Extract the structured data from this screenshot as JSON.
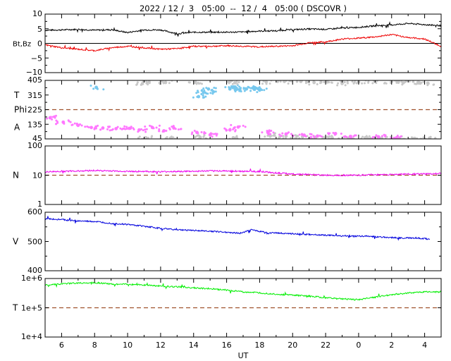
{
  "title": "2022 / 12 /  3   05:00  --  12 /  4   05:00 ( DSCOVR )",
  "x_axis": {
    "label": "UT",
    "tick_labels": [
      "6",
      "8",
      "10",
      "12",
      "14",
      "16",
      "18",
      "20",
      "22",
      "0",
      "2",
      "4"
    ],
    "tick_hours": [
      6,
      8,
      10,
      12,
      14,
      16,
      18,
      20,
      22,
      24,
      26,
      28
    ],
    "range_hours": [
      5,
      29
    ]
  },
  "colors": {
    "bt": "#000000",
    "bz": "#ee0000",
    "theta": "#77c8ee",
    "phi": "#c8c8c8",
    "angle_a": "#ff77ff",
    "density": "#ee00ee",
    "speed": "#0000dd",
    "temperature": "#00ee00",
    "reference": "#a0522d"
  },
  "chart_data": [
    {
      "type": "line",
      "panel": "magnetic-field",
      "ylabel": "Bt,Bz",
      "ylim": [
        -10,
        10
      ],
      "yticks": [
        "10",
        "5",
        "0",
        "−5",
        "−10"
      ],
      "ytick_values": [
        10,
        5,
        0,
        -5,
        -10
      ],
      "reference_line": 0,
      "series": [
        {
          "key": "bt",
          "x": [
            5,
            6,
            7,
            8,
            9,
            10,
            11,
            12,
            13,
            14,
            15,
            16,
            17,
            18,
            19,
            20,
            21,
            22,
            23,
            24,
            25,
            26,
            27,
            28,
            29.2
          ],
          "values": [
            4.5,
            4.6,
            4.8,
            4.5,
            4.7,
            3.7,
            4.6,
            4.6,
            3.3,
            3.8,
            3.8,
            3.8,
            3.9,
            4.2,
            4.3,
            4.7,
            4.9,
            4.8,
            5.2,
            5.5,
            6.0,
            6.3,
            6.8,
            6.4,
            6.0
          ]
        },
        {
          "key": "bz",
          "x": [
            5,
            6,
            7,
            8,
            9,
            10,
            11,
            12,
            13,
            14,
            15,
            16,
            17,
            18,
            19,
            20,
            21,
            22,
            23,
            24,
            25,
            26,
            27,
            28,
            29.2
          ],
          "values": [
            -0.5,
            -1.5,
            -2.0,
            -2.5,
            -1.5,
            -1.0,
            -1.5,
            -2.0,
            -1.8,
            -1.0,
            -1.0,
            -0.8,
            -1.0,
            -1.2,
            -1.0,
            -0.8,
            0.2,
            0.5,
            1.5,
            1.8,
            2.2,
            3.0,
            2.0,
            1.5,
            -1.5
          ]
        }
      ]
    },
    {
      "type": "scatter",
      "panel": "field-angles",
      "ylabels": [
        "T",
        "Phi",
        "A"
      ],
      "ylim": [
        45,
        405
      ],
      "yticks": [
        "405",
        "315",
        "225",
        "135",
        "45"
      ],
      "ytick_values": [
        405,
        315,
        225,
        135,
        45
      ],
      "reference_line": 225,
      "series": [
        {
          "key": "theta",
          "x": [
            8.1,
            14.3,
            14.6,
            14.9,
            15.2,
            16.2,
            16.5,
            16.8,
            17.2,
            17.6,
            18.0
          ],
          "values": [
            362,
            305,
            330,
            352,
            335,
            352,
            365,
            348,
            352,
            358,
            345
          ]
        },
        {
          "key": "phi",
          "x": [
            10.9,
            11.3,
            12.3,
            14.1,
            16.5,
            18.4,
            19.5,
            20.5,
            21.3,
            22.1,
            23.0,
            24.0,
            25.0,
            26.0,
            26.7,
            27.6,
            28.2
          ],
          "values": [
            385,
            395,
            392,
            395,
            390,
            395,
            398,
            398,
            392,
            395,
            386,
            395,
            398,
            398,
            390,
            392,
            388
          ]
        },
        {
          "key": "angle_a",
          "x": [
            5.3,
            6.1,
            7.0,
            7.8,
            8.5,
            9.3,
            10.1,
            10.7,
            11.5,
            12.2,
            12.8,
            14.2,
            15.0,
            16.2,
            16.7
          ],
          "values": [
            175,
            148,
            128,
            115,
            112,
            108,
            110,
            100,
            115,
            95,
            112,
            85,
            70,
            100,
            118
          ]
        },
        {
          "key": "phi",
          "x": [
            11.1,
            12.6,
            14.4,
            16.4,
            18.6,
            19.6,
            20.6,
            21.4,
            22.4,
            23.4,
            24.4,
            25.4,
            26.4,
            27.4,
            28.3
          ],
          "values": [
            52,
            50,
            55,
            52,
            68,
            62,
            58,
            54,
            52,
            50,
            52,
            50,
            50,
            48,
            50
          ]
        },
        {
          "key": "angle_a",
          "x": [
            18.5,
            19.6,
            20.7,
            21.5,
            22.6,
            23.5,
            25.2,
            26.3
          ],
          "values": [
            85,
            75,
            68,
            62,
            78,
            60,
            58,
            52
          ]
        }
      ]
    },
    {
      "type": "line",
      "panel": "density",
      "ylabel": "N",
      "scale": "log",
      "ylim": [
        1,
        100
      ],
      "yticks": [
        "100",
        "10",
        "1"
      ],
      "ytick_values": [
        100,
        10,
        1
      ],
      "reference_line": 10,
      "series": [
        {
          "key": "density",
          "x": [
            5,
            6,
            7,
            8,
            9,
            10,
            11,
            12,
            13,
            14,
            15,
            16,
            17,
            18,
            19,
            20,
            21,
            22,
            23,
            24,
            25,
            26,
            27,
            28,
            29.2
          ],
          "values": [
            13,
            13.5,
            14,
            14.5,
            14,
            13.5,
            13.5,
            13,
            13.5,
            13.5,
            14,
            14,
            13.5,
            13.5,
            12,
            11,
            10.5,
            10,
            10,
            10,
            10.5,
            10.5,
            11,
            11,
            11.5
          ]
        }
      ]
    },
    {
      "type": "line",
      "panel": "speed",
      "ylabel": "V",
      "ylim": [
        400,
        600
      ],
      "yticks": [
        "600",
        "500",
        "400"
      ],
      "ytick_values": [
        600,
        500,
        400
      ],
      "series": [
        {
          "key": "speed",
          "x": [
            5,
            6,
            7,
            8,
            9,
            10,
            11,
            12,
            13,
            14,
            15,
            16,
            16.8,
            17.5,
            18.5,
            19.5,
            20.5,
            21.5,
            22.5,
            23.5,
            24.5,
            25.5,
            26.5,
            27.5,
            28.3
          ],
          "values": [
            578,
            575,
            570,
            568,
            562,
            558,
            552,
            545,
            540,
            538,
            535,
            532,
            528,
            540,
            530,
            528,
            525,
            523,
            520,
            518,
            518,
            515,
            512,
            512,
            508
          ]
        }
      ]
    },
    {
      "type": "line",
      "panel": "temperature",
      "ylabel": "T",
      "scale": "log",
      "ylim": [
        10000,
        1000000
      ],
      "yticks": [
        "1e+6",
        "1e+5",
        "1e+4"
      ],
      "ytick_values": [
        1000000,
        100000,
        10000
      ],
      "reference_line": 100000,
      "series": [
        {
          "key": "temperature",
          "x": [
            5,
            6,
            7,
            8,
            9,
            10,
            11,
            12,
            13,
            14,
            15,
            16,
            17,
            18,
            19,
            20,
            21,
            22,
            23,
            24,
            25,
            26,
            27,
            28,
            29.2
          ],
          "values": [
            600000,
            650000,
            700000,
            720000,
            650000,
            630000,
            600000,
            550000,
            520000,
            480000,
            450000,
            400000,
            350000,
            320000,
            290000,
            270000,
            250000,
            220000,
            200000,
            190000,
            230000,
            280000,
            320000,
            350000,
            350000
          ]
        }
      ]
    }
  ]
}
